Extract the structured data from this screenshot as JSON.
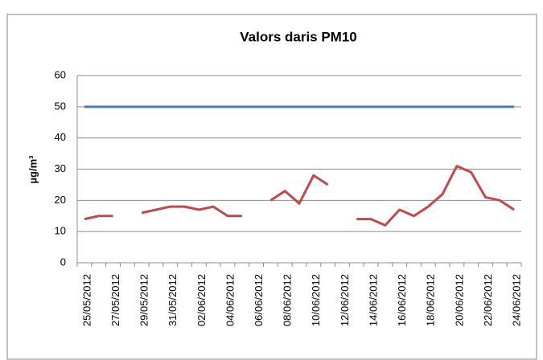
{
  "chart_data": {
    "type": "line",
    "title": "Valors daris PM10",
    "y_label": "µg/m³",
    "categories": [
      "25/05/2012",
      null,
      "27/05/2012",
      null,
      "29/05/2012",
      null,
      "31/05/2012",
      null,
      "02/06/2012",
      null,
      "04/06/2012",
      null,
      "06/06/2012",
      null,
      "08/06/2012",
      null,
      "10/06/2012",
      null,
      "12/06/2012",
      null,
      "14/06/2012",
      null,
      "16/06/2012",
      null,
      "18/06/2012",
      null,
      "20/06/2012",
      null,
      "22/06/2012",
      null,
      "24/06/2012"
    ],
    "series": [
      {
        "color": "#4a7ebb",
        "values": [
          50,
          50,
          50,
          50,
          50,
          50,
          50,
          50,
          50,
          50,
          50,
          50,
          50,
          50,
          50,
          50,
          50,
          50,
          50,
          50,
          50,
          50,
          50,
          50,
          50,
          50,
          50,
          50,
          50,
          50,
          50
        ]
      },
      {
        "color": "#be4b48",
        "values": [
          14,
          15,
          15,
          null,
          16,
          17,
          18,
          18,
          17,
          18,
          15,
          15,
          null,
          20,
          23,
          19,
          28,
          25,
          null,
          14,
          14,
          12,
          17,
          15,
          18,
          22,
          31,
          29,
          21,
          20,
          17
        ]
      }
    ],
    "ylim": [
      0,
      60
    ],
    "yticks": [
      0,
      10,
      20,
      30,
      40,
      50,
      60
    ],
    "grid": true
  }
}
